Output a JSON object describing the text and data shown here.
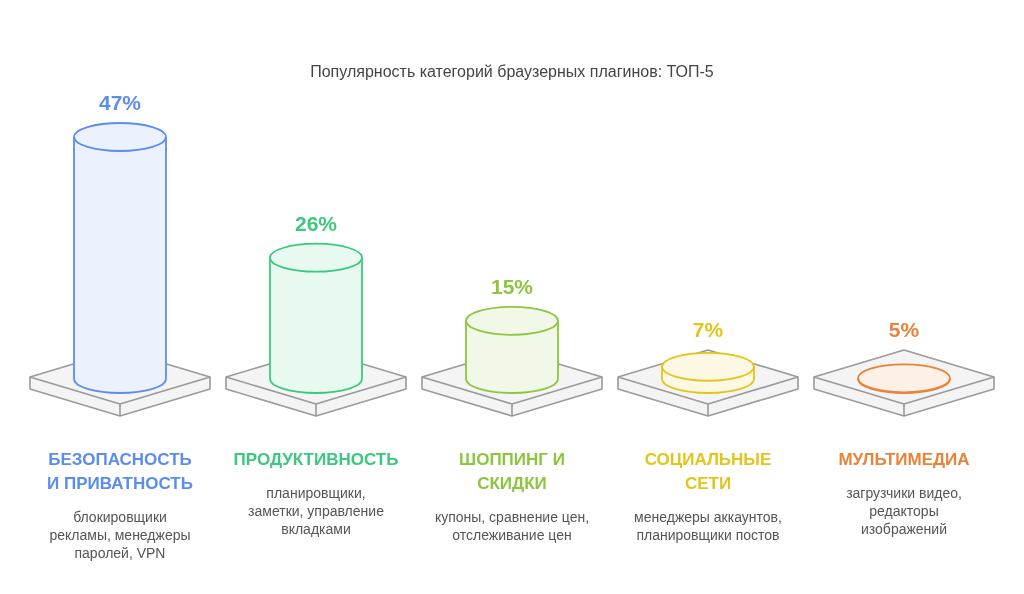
{
  "chart_data": {
    "type": "bar",
    "title": "Популярность категорий браузерных плагинов: ТОП-5",
    "categories": [
      "БЕЗОПАСНОСТЬ И ПРИВАТНОСТЬ",
      "ПРОДУКТИВНОСТЬ",
      "ШОППИНГ И СКИДКИ",
      "СОЦИАЛЬНЫЕ СЕТИ",
      "МУЛЬТИМЕДИА"
    ],
    "values": [
      47,
      26,
      15,
      7,
      5
    ],
    "value_labels": [
      "47%",
      "26%",
      "15%",
      "7%",
      "5%"
    ],
    "colors": [
      "#5b8def",
      "#3cc97f",
      "#8cc63f",
      "#e3c51a",
      "#e8843a"
    ],
    "annotations": [
      "блокировщики рекламы, менеджеры паролей, VPN",
      "планировщики, заметки, управление вкладками",
      "купоны, сравнение цен, отслеживание цен",
      "менеджеры аккаунтов, планировщики постов",
      "загрузчики видео, редакторы изображений"
    ]
  }
}
